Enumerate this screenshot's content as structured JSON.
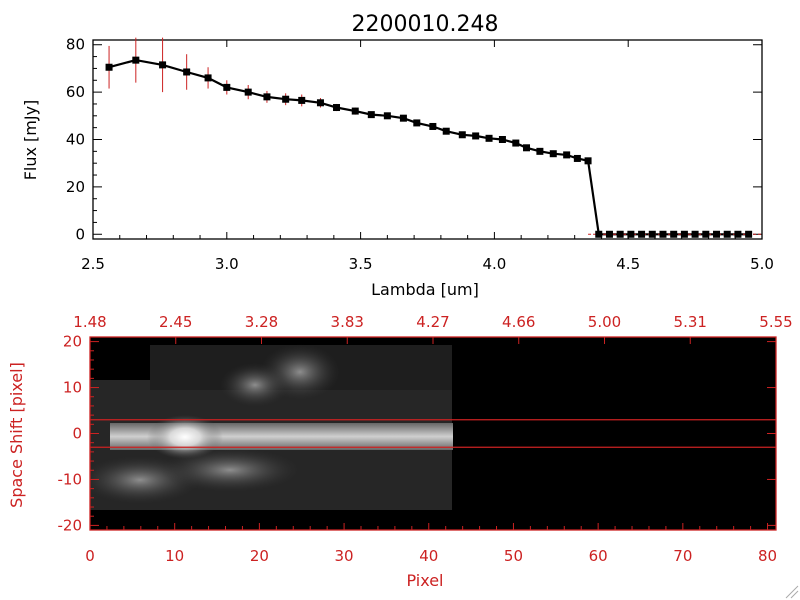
{
  "title": "2200010.248",
  "chart_data": [
    {
      "type": "line",
      "xlabel": "Lambda [um]",
      "ylabel": "Flux [mJy]",
      "xlim": [
        2.5,
        5.0
      ],
      "ylim": [
        -2,
        82
      ],
      "x_ticks": [
        "2.5",
        "3.0",
        "3.5",
        "4.0",
        "4.5",
        "5.0"
      ],
      "y_ticks": [
        "0",
        "20",
        "40",
        "60",
        "80"
      ],
      "x": [
        2.56,
        2.66,
        2.76,
        2.85,
        2.93,
        3.0,
        3.08,
        3.15,
        3.22,
        3.28,
        3.35,
        3.41,
        3.48,
        3.54,
        3.6,
        3.66,
        3.71,
        3.77,
        3.82,
        3.88,
        3.93,
        3.98,
        4.03,
        4.08,
        4.12,
        4.17,
        4.22,
        4.27,
        4.31,
        4.35,
        4.39,
        4.43,
        4.47,
        4.51,
        4.55,
        4.59,
        4.63,
        4.67,
        4.71,
        4.75,
        4.79,
        4.83,
        4.87,
        4.91,
        4.95
      ],
      "y": [
        70.5,
        73.5,
        71.5,
        68.5,
        66,
        62,
        60,
        58,
        57,
        56.5,
        55.5,
        53.5,
        52,
        50.5,
        50,
        49,
        47,
        45.5,
        43.5,
        42,
        41.5,
        40.5,
        40,
        38.5,
        36.5,
        35,
        34,
        33.5,
        32,
        31,
        0,
        0,
        0,
        0,
        0,
        0,
        0,
        0,
        0,
        0,
        0,
        0,
        0,
        0,
        0
      ],
      "error": [
        9,
        9.5,
        11.5,
        7.5,
        4.5,
        3,
        3,
        2.5,
        2.5,
        2.5,
        2,
        1.5,
        1.5,
        1.2,
        1.2,
        1.2,
        1.2,
        1.2,
        1.2,
        1.2,
        1.2,
        1.2,
        1.2,
        1.2,
        1.2,
        1.2,
        1.2,
        1.2,
        1.2,
        1.2,
        0,
        0,
        0,
        0,
        0,
        0,
        0,
        0,
        0,
        0,
        0,
        0,
        0,
        0,
        0
      ],
      "colors": {
        "line": "#000000",
        "marker": "#000000",
        "error_bars": "#cc2222"
      }
    },
    {
      "type": "heatmap",
      "xlabel": "Pixel",
      "ylabel": "Space Shift [pixel]",
      "xlim": [
        0,
        81
      ],
      "ylim": [
        -21,
        21
      ],
      "x_ticks": [
        "0",
        "10",
        "20",
        "30",
        "40",
        "50",
        "60",
        "70",
        "80"
      ],
      "y_ticks": [
        "-20",
        "-10",
        "0",
        "10",
        "20"
      ],
      "top_ticks": [
        "1.48",
        "2.45",
        "3.28",
        "3.83",
        "4.27",
        "4.66",
        "5.00",
        "5.31",
        "5.55"
      ],
      "horizontal_lines": [
        3,
        -3
      ],
      "colors": {
        "axes": "#cc2222",
        "background": "#000000",
        "colormap": "grayscale"
      }
    }
  ]
}
